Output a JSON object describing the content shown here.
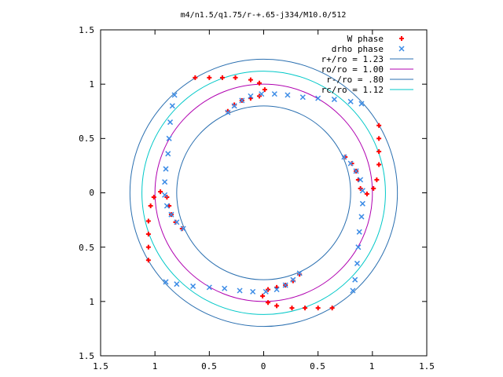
{
  "chart_data": {
    "type": "scatter",
    "title": "m4/n1.5/q1.75/r-+.65-j334/M10.0/512",
    "xlim": [
      -1.5,
      1.5
    ],
    "ylim": [
      -1.5,
      1.5
    ],
    "x_ticks": [
      -1.5,
      -1,
      -0.5,
      0,
      0.5,
      1,
      1.5
    ],
    "y_ticks": [
      -1.5,
      -1,
      -0.5,
      0,
      0.5,
      1,
      1.5
    ],
    "x_tick_labels": [
      "1.5",
      "1",
      "0.5",
      "0",
      "0.5",
      "1",
      "1.5"
    ],
    "y_tick_labels": [
      "1.5",
      "1",
      "0.5",
      "0",
      "0.5",
      "1",
      "1.5"
    ],
    "grid": false,
    "legend_position": "top-right",
    "series": [
      {
        "name": "W phase",
        "marker": "plus",
        "color": "#ff0000",
        "points": [
          [
            -0.63,
            1.06
          ],
          [
            -0.5,
            1.06
          ],
          [
            -0.38,
            1.06
          ],
          [
            -0.26,
            1.06
          ],
          [
            -0.12,
            1.04
          ],
          [
            -0.04,
            1.01
          ],
          [
            0.01,
            0.95
          ],
          [
            -0.04,
            0.89
          ],
          [
            -0.12,
            0.87
          ],
          [
            -0.2,
            0.85
          ],
          [
            -0.27,
            0.81
          ],
          [
            -0.33,
            0.75
          ],
          [
            1.06,
            0.62
          ],
          [
            1.06,
            0.5
          ],
          [
            1.06,
            0.38
          ],
          [
            1.06,
            0.26
          ],
          [
            1.04,
            0.12
          ],
          [
            1.01,
            0.04
          ],
          [
            0.95,
            -0.01
          ],
          [
            0.89,
            0.04
          ],
          [
            0.87,
            0.12
          ],
          [
            0.85,
            0.2
          ],
          [
            0.81,
            0.27
          ],
          [
            0.75,
            0.33
          ],
          [
            0.63,
            -1.06
          ],
          [
            0.5,
            -1.06
          ],
          [
            0.38,
            -1.06
          ],
          [
            0.26,
            -1.06
          ],
          [
            0.12,
            -1.04
          ],
          [
            0.04,
            -1.01
          ],
          [
            -0.01,
            -0.95
          ],
          [
            0.04,
            -0.89
          ],
          [
            0.12,
            -0.87
          ],
          [
            0.2,
            -0.85
          ],
          [
            0.27,
            -0.81
          ],
          [
            0.33,
            -0.75
          ],
          [
            -1.06,
            -0.62
          ],
          [
            -1.06,
            -0.5
          ],
          [
            -1.06,
            -0.38
          ],
          [
            -1.06,
            -0.26
          ],
          [
            -1.04,
            -0.12
          ],
          [
            -1.01,
            -0.04
          ],
          [
            -0.95,
            0.01
          ],
          [
            -0.89,
            -0.04
          ],
          [
            -0.87,
            -0.12
          ],
          [
            -0.85,
            -0.2
          ],
          [
            -0.81,
            -0.27
          ],
          [
            -0.75,
            -0.33
          ]
        ]
      },
      {
        "name": "drho phase",
        "marker": "cross",
        "color": "#3c8ce6",
        "points": [
          [
            -0.33,
            0.74
          ],
          [
            -0.27,
            0.8
          ],
          [
            -0.2,
            0.85
          ],
          [
            -0.12,
            0.89
          ],
          [
            -0.02,
            0.91
          ],
          [
            0.1,
            0.91
          ],
          [
            0.22,
            0.9
          ],
          [
            0.36,
            0.88
          ],
          [
            0.5,
            0.87
          ],
          [
            0.65,
            0.86
          ],
          [
            0.8,
            0.84
          ],
          [
            0.9,
            0.82
          ],
          [
            0.74,
            0.33
          ],
          [
            0.8,
            0.27
          ],
          [
            0.85,
            0.2
          ],
          [
            0.89,
            0.12
          ],
          [
            0.91,
            0.02
          ],
          [
            0.91,
            -0.1
          ],
          [
            0.9,
            -0.22
          ],
          [
            0.88,
            -0.36
          ],
          [
            0.87,
            -0.5
          ],
          [
            0.86,
            -0.65
          ],
          [
            0.84,
            -0.8
          ],
          [
            0.82,
            -0.9
          ],
          [
            0.33,
            -0.74
          ],
          [
            0.27,
            -0.8
          ],
          [
            0.2,
            -0.85
          ],
          [
            0.12,
            -0.89
          ],
          [
            0.02,
            -0.91
          ],
          [
            -0.1,
            -0.91
          ],
          [
            -0.22,
            -0.9
          ],
          [
            -0.36,
            -0.88
          ],
          [
            -0.5,
            -0.87
          ],
          [
            -0.65,
            -0.86
          ],
          [
            -0.8,
            -0.84
          ],
          [
            -0.9,
            -0.82
          ],
          [
            -0.74,
            -0.33
          ],
          [
            -0.8,
            -0.27
          ],
          [
            -0.85,
            -0.2
          ],
          [
            -0.89,
            -0.12
          ],
          [
            -0.91,
            -0.02
          ],
          [
            -0.91,
            0.1
          ],
          [
            -0.9,
            0.22
          ],
          [
            -0.88,
            0.36
          ],
          [
            -0.87,
            0.5
          ],
          [
            -0.86,
            0.65
          ],
          [
            -0.84,
            0.8
          ],
          [
            -0.82,
            0.9
          ]
        ]
      },
      {
        "name": "r+/ro = 1.23",
        "type": "circle",
        "radius": 1.23,
        "color": "#2a6fb0"
      },
      {
        "name": "ro/ro = 1.00",
        "type": "circle",
        "radius": 1.0,
        "color": "#b000b0"
      },
      {
        "name": "r-/ro = .80",
        "type": "circle",
        "radius": 0.8,
        "color": "#2a6fb0"
      },
      {
        "name": "rc/ro = 1.12",
        "type": "circle",
        "radius": 1.12,
        "color": "#00c8c8"
      }
    ]
  }
}
